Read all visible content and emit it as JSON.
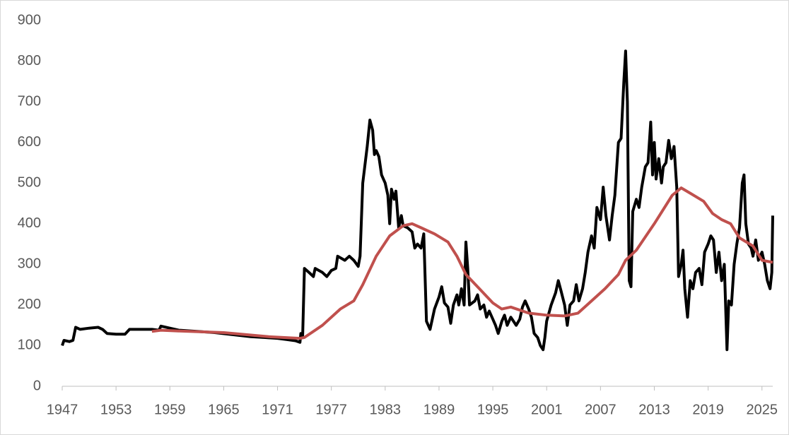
{
  "chart_data": {
    "type": "line",
    "xlim": [
      1947,
      2026.2
    ],
    "xticks": [
      1947,
      1953,
      1959,
      1965,
      1971,
      1977,
      1983,
      1989,
      1995,
      2001,
      2007,
      2013,
      2019,
      2025
    ],
    "ylim": [
      0,
      900
    ],
    "yticks": [
      0,
      100,
      200,
      300,
      400,
      500,
      600,
      700,
      800,
      900
    ],
    "grid": false,
    "series": [
      {
        "color": "#000000",
        "x": [
          1947.0,
          1947.2,
          1947.8,
          1948.2,
          1948.5,
          1949,
          1950,
          1951,
          1951.5,
          1952,
          1953,
          1954,
          1954.5,
          1956,
          1957,
          1957.8,
          1958,
          1959,
          1960,
          1962,
          1964,
          1966,
          1968,
          1969.5,
          1971,
          1972,
          1973,
          1973.5,
          1973.6,
          1973.8,
          1974.0,
          1974.5,
          1975,
          1975.2,
          1976,
          1976.5,
          1977,
          1977.5,
          1977.7,
          1978.5,
          1979,
          1979.5,
          1980,
          1980.2,
          1980.5,
          1981,
          1981.3,
          1981.6,
          1981.8,
          1982,
          1982.3,
          1982.6,
          1983,
          1983.3,
          1983.5,
          1983.7,
          1984,
          1984.2,
          1984.5,
          1984.8,
          1985,
          1985.5,
          1986,
          1986.3,
          1986.6,
          1987,
          1987.3,
          1987.6,
          1988,
          1988.5,
          1989,
          1989.3,
          1989.6,
          1990,
          1990.3,
          1990.6,
          1991,
          1991.2,
          1991.5,
          1991.8,
          1992,
          1992.2,
          1992.4,
          1993,
          1993.3,
          1993.6,
          1994,
          1994.3,
          1994.6,
          1995,
          1995.3,
          1995.6,
          1996,
          1996.3,
          1996.6,
          1997,
          1997.3,
          1997.6,
          1998,
          1998.3,
          1998.6,
          1999,
          1999.3,
          1999.6,
          2000,
          2000.3,
          2000.6,
          2000.8,
          2001,
          2001.5,
          2002,
          2002.3,
          2002.6,
          2003,
          2003.3,
          2003.6,
          2004,
          2004.3,
          2004.6,
          2005,
          2005.3,
          2005.6,
          2006,
          2006.3,
          2006.6,
          2007,
          2007.3,
          2007.6,
          2008,
          2008.3,
          2008.6,
          2009,
          2009.3,
          2009.6,
          2009.8,
          2010,
          2010.2,
          2010.4,
          2010.6,
          2011,
          2011.3,
          2011.6,
          2012,
          2012.3,
          2012.6,
          2012.8,
          2013,
          2013.2,
          2013.5,
          2013.8,
          2014,
          2014.3,
          2014.6,
          2014.9,
          2015.2,
          2015.5,
          2015.7,
          2016,
          2016.2,
          2016.4,
          2016.7,
          2017,
          2017.3,
          2017.6,
          2018,
          2018.3,
          2018.6,
          2019,
          2019.3,
          2019.6,
          2019.9,
          2020.2,
          2020.5,
          2020.8,
          2021.1,
          2021.3,
          2021.6,
          2021.9,
          2022.2,
          2022.5,
          2022.8,
          2023,
          2023.2,
          2023.5,
          2023.8,
          2024,
          2024.3,
          2024.6,
          2025,
          2025.3,
          2025.6,
          2025.9,
          2026.1,
          2026.2
        ],
        "values": [
          100,
          113,
          110,
          113,
          145,
          140,
          143,
          145,
          140,
          130,
          128,
          128,
          140,
          140,
          140,
          138,
          148,
          143,
          138,
          135,
          132,
          127,
          122,
          120,
          118,
          115,
          112,
          108,
          130,
          125,
          290,
          280,
          270,
          290,
          280,
          270,
          285,
          290,
          320,
          310,
          320,
          310,
          295,
          320,
          500,
          590,
          655,
          630,
          570,
          580,
          565,
          520,
          500,
          470,
          400,
          485,
          460,
          480,
          390,
          420,
          395,
          390,
          380,
          340,
          350,
          340,
          375,
          160,
          140,
          190,
          220,
          245,
          205,
          195,
          155,
          200,
          225,
          200,
          240,
          200,
          355,
          290,
          200,
          210,
          225,
          190,
          200,
          170,
          185,
          165,
          150,
          130,
          160,
          175,
          150,
          170,
          160,
          150,
          165,
          195,
          210,
          190,
          170,
          130,
          120,
          100,
          90,
          120,
          160,
          200,
          230,
          260,
          235,
          200,
          150,
          200,
          210,
          250,
          210,
          240,
          280,
          330,
          370,
          340,
          440,
          410,
          490,
          420,
          360,
          420,
          470,
          600,
          610,
          750,
          825,
          700,
          260,
          245,
          430,
          460,
          440,
          490,
          540,
          550,
          650,
          520,
          600,
          510,
          560,
          500,
          540,
          550,
          605,
          560,
          590,
          490,
          270,
          300,
          335,
          240,
          170,
          260,
          240,
          280,
          290,
          250,
          330,
          350,
          370,
          360,
          280,
          330,
          260,
          300,
          90,
          210,
          200,
          300,
          350,
          390,
          500,
          520,
          400,
          350,
          340,
          320,
          360,
          310,
          330,
          300,
          260,
          240,
          280,
          420
        ]
      },
      {
        "color": "#c0504d",
        "x": [
          1957,
          1958,
          1960,
          1965,
          1970,
          1973.5,
          1974,
          1976,
          1978,
          1979.5,
          1980.5,
          1982,
          1983.5,
          1985,
          1986,
          1987,
          1988.5,
          1990,
          1991,
          1992,
          1993.5,
          1995,
          1996,
          1997,
          1999,
          2001,
          2003,
          2004.5,
          2006,
          2007.5,
          2009,
          2009.8,
          2011,
          2013,
          2015,
          2016,
          2017,
          2018.5,
          2019.5,
          2020.5,
          2021.5,
          2022.5,
          2024,
          2025,
          2026.2
        ],
        "values": [
          135,
          138,
          136,
          132,
          122,
          118,
          120,
          150,
          190,
          210,
          250,
          320,
          370,
          395,
          400,
          390,
          375,
          355,
          320,
          275,
          240,
          205,
          190,
          195,
          180,
          175,
          173,
          180,
          210,
          240,
          275,
          310,
          335,
          400,
          470,
          488,
          475,
          455,
          425,
          410,
          400,
          365,
          345,
          310,
          305
        ]
      }
    ]
  }
}
